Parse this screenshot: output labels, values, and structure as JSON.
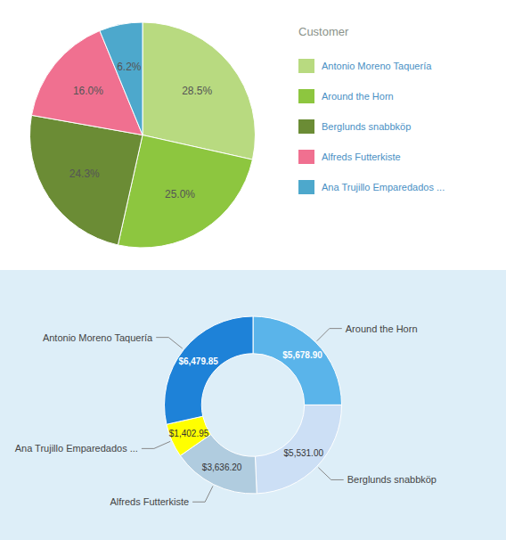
{
  "chart_data": [
    {
      "type": "pie",
      "legend_title": "Customer",
      "categories": [
        "Antonio Moreno Taquería",
        "Around the Horn",
        "Berglunds snabbköp",
        "Alfreds Futterkiste",
        "Ana Trujillo Emparedados ..."
      ],
      "values": [
        28.5,
        25.0,
        24.3,
        16.0,
        6.2
      ],
      "value_labels": [
        "28.5%",
        "25.0%",
        "24.3%",
        "16.0%",
        "6.2%"
      ],
      "colors": [
        "#b8da80",
        "#8dc63f",
        "#6b8c35",
        "#f07090",
        "#4da8cc"
      ],
      "data_labels": true,
      "legend": "right"
    },
    {
      "type": "donut",
      "categories": [
        "Around the Horn",
        "Berglunds snabbköp",
        "Alfreds Futterkiste",
        "Ana Trujillo Emparedados ...",
        "Antonio Moreno Taquería"
      ],
      "values": [
        5678.9,
        5531.0,
        3636.2,
        1402.95,
        6479.85
      ],
      "value_labels": [
        "$5,678.90",
        "$5,531.00",
        "$3,636.20",
        "$1,402.95",
        "$6,479.85"
      ],
      "colors": [
        "#5ab4ea",
        "#ccdff5",
        "#b0ccdf",
        "#ffff00",
        "#1e82d8"
      ],
      "data_labels": true
    }
  ]
}
